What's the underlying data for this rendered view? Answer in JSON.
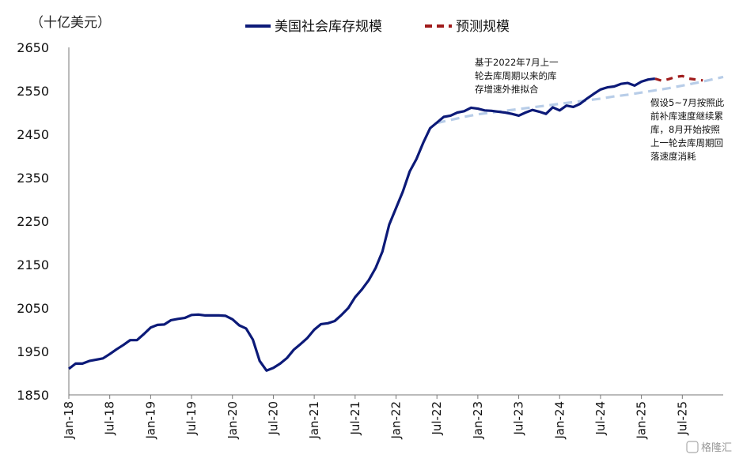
{
  "chart_data": {
    "type": "line",
    "unit_label": "（十亿美元）",
    "ylim": [
      1850,
      2650
    ],
    "yticks": [
      1850,
      1950,
      2050,
      2150,
      2250,
      2350,
      2450,
      2550,
      2650
    ],
    "xlim": [
      0,
      96
    ],
    "xticks": [
      {
        "label": "Jan-18",
        "x": 0
      },
      {
        "label": "Jul-18",
        "x": 6
      },
      {
        "label": "Jan-19",
        "x": 12
      },
      {
        "label": "Jul-19",
        "x": 18
      },
      {
        "label": "Jan-20",
        "x": 24
      },
      {
        "label": "Jul-20",
        "x": 30
      },
      {
        "label": "Jan-21",
        "x": 36
      },
      {
        "label": "Jul-21",
        "x": 42
      },
      {
        "label": "Jan-22",
        "x": 48
      },
      {
        "label": "Jul-22",
        "x": 54
      },
      {
        "label": "Jan-23",
        "x": 60
      },
      {
        "label": "Jul-23",
        "x": 66
      },
      {
        "label": "Jan-24",
        "x": 72
      },
      {
        "label": "Jul-24",
        "x": 78
      },
      {
        "label": "Jan-25",
        "x": 84
      },
      {
        "label": "Jul-25",
        "x": 90
      }
    ],
    "legend": {
      "placement": "top-center"
    },
    "series": [
      {
        "name": "美国社会库存规模",
        "style": "solid",
        "color": "#0c1a78",
        "x": [
          0,
          1,
          2,
          3,
          4,
          5,
          6,
          7,
          8,
          9,
          10,
          11,
          12,
          13,
          14,
          15,
          16,
          17,
          18,
          19,
          20,
          21,
          22,
          23,
          24,
          25,
          26,
          27,
          28,
          29,
          30,
          31,
          32,
          33,
          34,
          35,
          36,
          37,
          38,
          39,
          40,
          41,
          42,
          43,
          44,
          45,
          46,
          47,
          48,
          49,
          50,
          51,
          52,
          53,
          54,
          55,
          56,
          57,
          58,
          59,
          60,
          61,
          62,
          63,
          64,
          65,
          66,
          67,
          68,
          69,
          70,
          71,
          72,
          73,
          74,
          75,
          76,
          77,
          78,
          79,
          80,
          81,
          82,
          83,
          84,
          85,
          86
        ],
        "y": [
          1910,
          1922,
          1922,
          1928,
          1931,
          1934,
          1944,
          1955,
          1965,
          1976,
          1976,
          1990,
          2005,
          2011,
          2012,
          2022,
          2025,
          2027,
          2034,
          2035,
          2033,
          2033,
          2033,
          2032,
          2024,
          2010,
          2003,
          1977,
          1928,
          1906,
          1912,
          1922,
          1935,
          1954,
          1967,
          1981,
          2000,
          2013,
          2015,
          2020,
          2034,
          2050,
          2075,
          2093,
          2114,
          2142,
          2180,
          2242,
          2280,
          2318,
          2364,
          2393,
          2431,
          2464,
          2477,
          2490,
          2493,
          2500,
          2503,
          2511,
          2509,
          2505,
          2504,
          2502,
          2500,
          2497,
          2493,
          2500,
          2506,
          2502,
          2497,
          2512,
          2505,
          2516,
          2513,
          2520,
          2532,
          2543,
          2553,
          2558,
          2560,
          2566,
          2568,
          2562,
          2571,
          2576,
          2578
        ]
      },
      {
        "name": "预测规模",
        "style": "dashed",
        "color": "#a01b1b",
        "x": [
          86,
          87,
          88,
          89,
          90,
          91,
          92,
          93
        ],
        "y": [
          2578,
          2573,
          2577,
          2582,
          2584,
          2578,
          2576,
          2574
        ]
      },
      {
        "style": "dashed",
        "color": "#b8cde8",
        "x": [
          54,
          56,
          58,
          60,
          62,
          64,
          66,
          68,
          70,
          72,
          74,
          76,
          78,
          80,
          82,
          84,
          86,
          88,
          90,
          92,
          94,
          96
        ],
        "y": [
          2476,
          2483,
          2490,
          2496,
          2500,
          2504,
          2508,
          2512,
          2516,
          2520,
          2524,
          2528,
          2532,
          2537,
          2541,
          2546,
          2551,
          2556,
          2562,
          2568,
          2575,
          2582
        ]
      }
    ],
    "annotations": [
      {
        "id": "fit",
        "lines": [
          "基于2022年7月上一",
          "轮去库周期以来的库",
          "存增速外推拟合"
        ]
      },
      {
        "id": "forecast",
        "lines": [
          "假设5~7月按照此",
          "前补库速度继续累",
          "库，8月开始按照",
          "上一轮去库周期回",
          "落速度消耗"
        ]
      }
    ],
    "watermark": "格隆汇"
  }
}
